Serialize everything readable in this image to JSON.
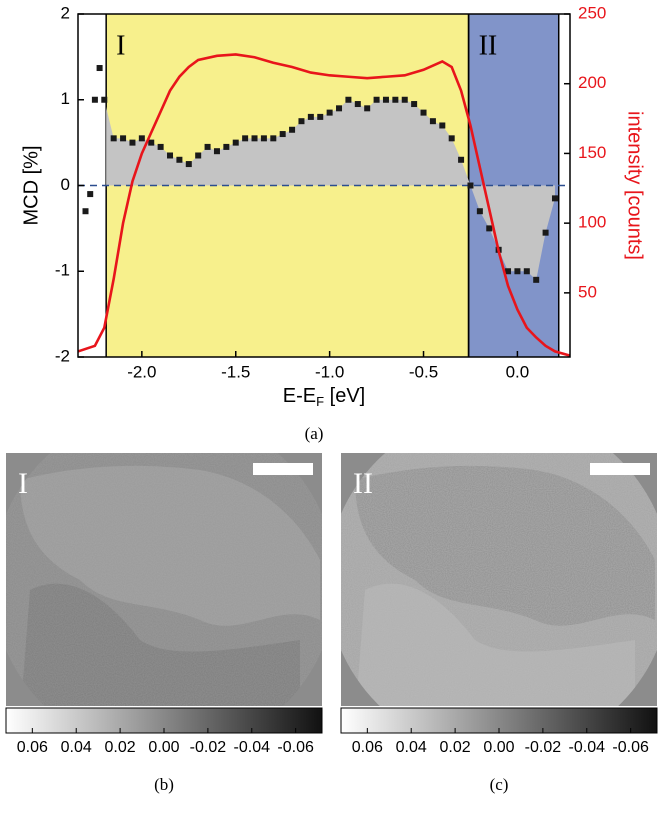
{
  "chart_data": {
    "type": "scatter",
    "xlabel_parts": [
      "E-E",
      "F",
      " [eV]"
    ],
    "ylabel": "MCD [%]",
    "y2label": "intensity [counts]",
    "caption": "(a)",
    "xlim": [
      -2.34,
      0.28
    ],
    "xticks": [
      {
        "value": -2,
        "label": "-2.0"
      },
      {
        "value": -1.5,
        "label": "-1.5"
      },
      {
        "value": -1,
        "label": "-1.0"
      },
      {
        "value": -0.5,
        "label": "-0.5"
      },
      {
        "value": 0,
        "label": "0.0"
      }
    ],
    "ylim": [
      -2,
      2
    ],
    "yticks": [
      -2,
      -1,
      0,
      1,
      2
    ],
    "y2lim": [
      4,
      250
    ],
    "y2ticks": [
      50,
      100,
      150,
      200,
      250
    ],
    "regions": [
      {
        "label": "I",
        "range": [
          -2.19,
          -0.26
        ],
        "color": "#f7f08c"
      },
      {
        "label": "II",
        "range": [
          -0.26,
          0.22
        ],
        "color": "#8194c9"
      }
    ],
    "series": [
      {
        "name": "MCD",
        "color": "#1a1a1a",
        "fill": "#c4c4c4",
        "x": [
          -2.3,
          -2.275,
          -2.25,
          -2.225,
          -2.2,
          -2.15,
          -2.1,
          -2.05,
          -2.0,
          -1.95,
          -1.9,
          -1.85,
          -1.8,
          -1.75,
          -1.7,
          -1.65,
          -1.6,
          -1.55,
          -1.5,
          -1.45,
          -1.4,
          -1.35,
          -1.3,
          -1.25,
          -1.2,
          -1.15,
          -1.1,
          -1.05,
          -1.0,
          -0.95,
          -0.9,
          -0.85,
          -0.8,
          -0.75,
          -0.7,
          -0.65,
          -0.6,
          -0.55,
          -0.5,
          -0.45,
          -0.4,
          -0.35,
          -0.3,
          -0.25,
          -0.2,
          -0.15,
          -0.1,
          -0.05,
          0.0,
          0.05,
          0.1,
          0.15,
          0.2
        ],
        "values": [
          -0.3,
          -0.1,
          1.0,
          1.37,
          1.0,
          0.55,
          0.55,
          0.5,
          0.55,
          0.5,
          0.45,
          0.35,
          0.3,
          0.25,
          0.35,
          0.45,
          0.4,
          0.45,
          0.5,
          0.55,
          0.55,
          0.55,
          0.55,
          0.6,
          0.65,
          0.75,
          0.8,
          0.8,
          0.85,
          0.9,
          1.0,
          0.95,
          0.9,
          1.0,
          1.0,
          1.0,
          1.0,
          0.95,
          0.85,
          0.75,
          0.7,
          0.55,
          0.3,
          0.0,
          -0.3,
          -0.5,
          -0.75,
          -1.0,
          -1.0,
          -1.0,
          -1.1,
          -0.55,
          -0.15
        ]
      },
      {
        "name": "intensity",
        "color": "#e8151b",
        "axis": "y2",
        "x": [
          -2.34,
          -2.25,
          -2.2,
          -2.15,
          -2.1,
          -2.05,
          -2.0,
          -1.95,
          -1.9,
          -1.85,
          -1.8,
          -1.75,
          -1.7,
          -1.6,
          -1.5,
          -1.4,
          -1.3,
          -1.2,
          -1.1,
          -1.0,
          -0.9,
          -0.8,
          -0.7,
          -0.6,
          -0.5,
          -0.4,
          -0.35,
          -0.3,
          -0.25,
          -0.2,
          -0.15,
          -0.1,
          -0.05,
          0.0,
          0.05,
          0.1,
          0.15,
          0.2,
          0.28
        ],
        "values": [
          8,
          12,
          25,
          60,
          100,
          130,
          150,
          165,
          180,
          195,
          205,
          212,
          217,
          220,
          221,
          219,
          215,
          212,
          208,
          206,
          205,
          204,
          205,
          206,
          210,
          216,
          212,
          195,
          170,
          140,
          110,
          80,
          55,
          38,
          25,
          18,
          12,
          8,
          5
        ]
      }
    ]
  },
  "panels": [
    {
      "label": "I",
      "caption": "(b)",
      "clim": [
        0.072,
        -0.072
      ],
      "colorbar_ticks": [
        0.06,
        0.04,
        0.02,
        {
          "value": 0,
          "label": "0.00"
        },
        -0.02,
        -0.04,
        -0.06
      ]
    },
    {
      "label": "II",
      "caption": "(c)",
      "clim": [
        0.072,
        -0.072
      ],
      "colorbar_ticks": [
        0.06,
        0.04,
        0.02,
        {
          "value": 0,
          "label": "0.00"
        },
        -0.02,
        -0.04,
        -0.06
      ]
    }
  ]
}
